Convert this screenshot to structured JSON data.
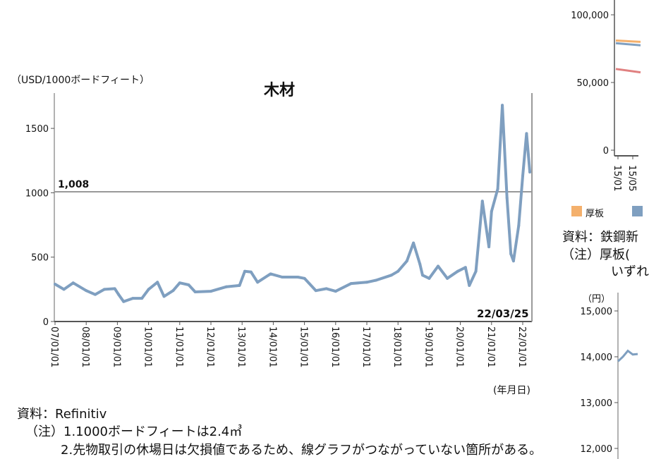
{
  "chart_data": [
    {
      "type": "line",
      "title": "木材",
      "ylabel": "（USD/1000ボードフィート）",
      "xlabel": "(年月日)",
      "ylim": [
        0,
        1750
      ],
      "xlim": [
        "2007-01-01",
        "2022-03-25"
      ],
      "yticks": [
        "0",
        "500",
        "1000",
        "1500"
      ],
      "xticks": [
        "07/01/01",
        "08/01/01",
        "09/01/01",
        "10/01/01",
        "11/01/01",
        "12/01/01",
        "13/01/01",
        "14/01/01",
        "15/01/01",
        "16/01/01",
        "17/01/01",
        "18/01/01",
        "19/01/01",
        "20/01/01",
        "21/01/01",
        "22/01/01"
      ],
      "reference_line": {
        "value": 1008,
        "label": "1,008"
      },
      "end_label": "22/03/25",
      "grid": false,
      "color": "#7f9fc0",
      "series": [
        {
          "points": [
            [
              "2007-01-01",
              290
            ],
            [
              "2007-04-15",
              250
            ],
            [
              "2007-08-01",
              300
            ],
            [
              "2008-01-01",
              240
            ],
            [
              "2008-04-15",
              210
            ],
            [
              "2008-08-01",
              250
            ],
            [
              "2008-12-01",
              255
            ],
            [
              "2009-01-15",
              210
            ],
            [
              "2009-03-15",
              155
            ],
            [
              "2009-07-01",
              180
            ],
            [
              "2009-10-15",
              180
            ],
            [
              "2010-01-01",
              250
            ],
            [
              "2010-04-15",
              305
            ],
            [
              "2010-07-01",
              195
            ],
            [
              "2010-10-15",
              240
            ],
            [
              "2011-01-01",
              300
            ],
            [
              "2011-04-15",
              285
            ],
            [
              "2011-07-01",
              230
            ],
            [
              "2012-01-01",
              235
            ],
            [
              "2012-07-01",
              270
            ],
            [
              "2012-12-01",
              280
            ],
            [
              "2013-02-01",
              390
            ],
            [
              "2013-04-15",
              385
            ],
            [
              "2013-07-01",
              305
            ],
            [
              "2013-12-01",
              370
            ],
            [
              "2014-04-15",
              345
            ],
            [
              "2014-10-15",
              345
            ],
            [
              "2015-01-01",
              335
            ],
            [
              "2015-05-15",
              240
            ],
            [
              "2015-09-15",
              255
            ],
            [
              "2016-01-01",
              235
            ],
            [
              "2016-07-01",
              295
            ],
            [
              "2017-01-01",
              305
            ],
            [
              "2017-04-15",
              320
            ],
            [
              "2017-10-15",
              360
            ],
            [
              "2018-01-01",
              390
            ],
            [
              "2018-04-15",
              470
            ],
            [
              "2018-07-01",
              610
            ],
            [
              "2018-09-15",
              445
            ],
            [
              "2018-10-15",
              360
            ],
            [
              "2019-01-01",
              335
            ],
            [
              "2019-04-15",
              430
            ],
            [
              "2019-08-01",
              335
            ],
            [
              "2019-12-01",
              390
            ],
            [
              "2020-03-01",
              420
            ],
            [
              "2020-04-15",
              280
            ],
            [
              "2020-07-01",
              390
            ],
            [
              "2020-09-15",
              935
            ],
            [
              "2020-12-01",
              580
            ],
            [
              "2021-01-01",
              855
            ],
            [
              "2021-03-15",
              1030
            ],
            [
              "2021-05-07",
              1680
            ],
            [
              "2021-07-01",
              960
            ],
            [
              "2021-08-15",
              525
            ],
            [
              "2021-09-15",
              470
            ],
            [
              "2021-11-15",
              745
            ],
            [
              "2022-01-01",
              1130
            ],
            [
              "2022-02-15",
              1460
            ],
            [
              "2022-03-25",
              1160
            ]
          ]
        }
      ]
    },
    {
      "type": "line",
      "yticks": [
        "0",
        "50,000",
        "100,000"
      ],
      "xticks": [
        "15/01",
        "15/05"
      ],
      "legend": [
        {
          "name": "厚板",
          "color": "#f4b06c"
        },
        {
          "name": "",
          "color": "#7f9fc0"
        }
      ],
      "series": [
        {
          "name": "厚板",
          "color": "#f4b06c",
          "values": [
            81000,
            80000
          ]
        },
        {
          "color": "#7f9fc0",
          "values": [
            79000,
            77500
          ]
        },
        {
          "color": "#e08080",
          "values": [
            60000,
            57500
          ]
        }
      ]
    },
    {
      "type": "line",
      "ylabel": "（円）",
      "yticks": [
        "12,000",
        "13,000",
        "14,000",
        "15,000"
      ],
      "series": [
        {
          "color": "#7f9fc0",
          "values": [
            13900,
            14000,
            14130,
            14050,
            14060
          ]
        }
      ]
    }
  ],
  "notes": {
    "source": "資料：Refinitiv",
    "note1": "（注）1.1000ボードフィートは2.4㎥",
    "note2": "2.先物取引の休場日は欠損値であるため、線グラフがつながっていない箇所がある。",
    "right_source": "資料：鉄鋼新",
    "right_note1": "（注）厚板(",
    "right_note2": "いずれ"
  }
}
